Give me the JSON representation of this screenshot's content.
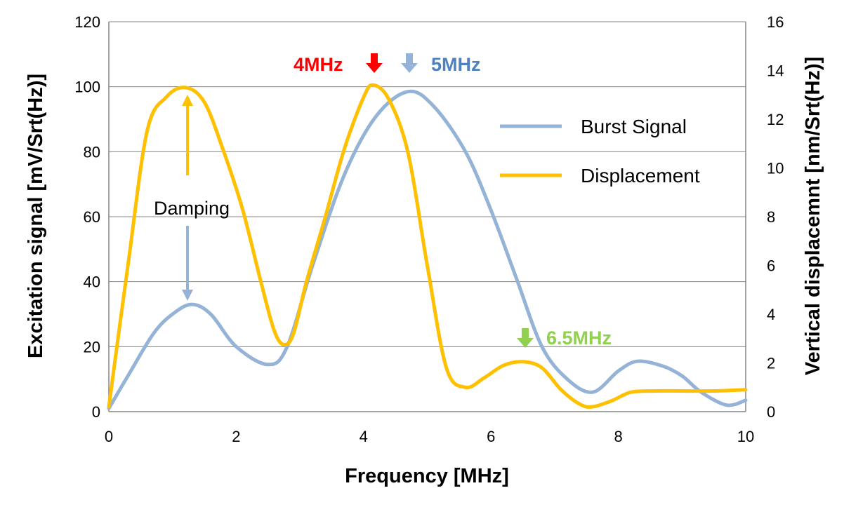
{
  "chart_data": {
    "type": "line",
    "title": "",
    "xlabel": "Frequency [MHz]",
    "ylabel": "Excitation signal [mV/Srt(Hz)]",
    "y2label": "Vertical displacemnt [nm/Srt(Hz)]",
    "xlim": [
      0,
      10
    ],
    "ylim": [
      0,
      120
    ],
    "y2lim": [
      0,
      16
    ],
    "xticks": [
      0,
      2,
      4,
      6,
      8,
      10
    ],
    "yticks": [
      0,
      20,
      40,
      60,
      80,
      100,
      120
    ],
    "y2ticks": [
      0,
      2,
      4,
      6,
      8,
      10,
      12,
      14,
      16
    ],
    "grid": "horizontal",
    "legend_position": "top-right",
    "series": [
      {
        "name": "Burst Signal",
        "axis": "left",
        "color": "#95b3d7",
        "x": [
          0,
          0.3,
          0.7,
          1.0,
          1.3,
          1.6,
          2.0,
          2.5,
          2.8,
          3.2,
          3.7,
          4.2,
          4.7,
          5.1,
          5.6,
          6.0,
          6.4,
          6.8,
          7.2,
          7.6,
          8.0,
          8.3,
          8.7,
          9.0,
          9.3,
          9.7,
          10.0
        ],
        "values": [
          1,
          11,
          24,
          30,
          33,
          30,
          20,
          14.5,
          20,
          45,
          73,
          91,
          98.5,
          94,
          80,
          62,
          41,
          20,
          10,
          6,
          12.5,
          15.5,
          14,
          11,
          6,
          2,
          3.5
        ]
      },
      {
        "name": "Displacement",
        "axis": "right",
        "color": "#ffc000",
        "x": [
          0,
          0.3,
          0.6,
          0.9,
          1.2,
          1.5,
          1.8,
          2.1,
          2.4,
          2.6,
          2.75,
          2.9,
          3.1,
          3.4,
          3.7,
          4.0,
          4.15,
          4.4,
          4.7,
          5.0,
          5.3,
          5.6,
          5.9,
          6.2,
          6.5,
          6.8,
          7.1,
          7.4,
          7.6,
          7.9,
          8.2,
          8.6,
          9.0,
          9.5,
          10.0
        ],
        "values": [
          0.2,
          6,
          11.5,
          12.9,
          13.3,
          12.7,
          10.7,
          8.3,
          5.2,
          3.3,
          2.75,
          3.2,
          5.3,
          8,
          10.8,
          12.9,
          13.4,
          12.8,
          10.6,
          6,
          1.8,
          1,
          1.4,
          1.9,
          2.05,
          1.8,
          0.9,
          0.3,
          0.2,
          0.45,
          0.8,
          0.85,
          0.85,
          0.85,
          0.9
        ]
      }
    ],
    "annotations": [
      {
        "text": "4MHz",
        "color": "#ff0000",
        "arrow_color": "#ff0000",
        "x": 4,
        "y": 108
      },
      {
        "text": "5MHz",
        "color": "#4f81bd",
        "arrow_color": "#95b3d7",
        "x": 4.7,
        "y": 108
      },
      {
        "text": "6.5MHz",
        "color": "#92d050",
        "arrow_color": "#92d050",
        "x": 6.5,
        "y": 25
      },
      {
        "text": "Damping",
        "color": "#000000"
      }
    ]
  }
}
